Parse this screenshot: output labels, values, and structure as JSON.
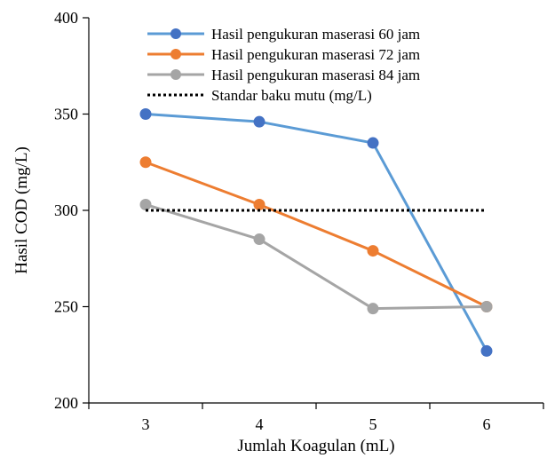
{
  "chart_data": {
    "type": "line",
    "title": "",
    "xlabel": "Jumlah Koagulan (mL)",
    "ylabel": "Hasil COD (mg/L)",
    "categories": [
      "3",
      "4",
      "5",
      "6"
    ],
    "ylim": [
      200,
      400
    ],
    "yticks": [
      200,
      250,
      300,
      350,
      400
    ],
    "grid": false,
    "legend_position": "top",
    "series": [
      {
        "name": "Hasil pengukuran maserasi 60 jam",
        "values": [
          350,
          346,
          335,
          227
        ],
        "color": "#5b9bd5",
        "marker_color": "#4472c4",
        "style": "solid-marker"
      },
      {
        "name": "Hasil pengukuran maserasi 72 jam",
        "values": [
          325,
          303,
          279,
          250
        ],
        "color": "#ed7d31",
        "marker_color": "#ed7d31",
        "style": "solid-marker"
      },
      {
        "name": "Hasil pengukuran maserasi 84 jam",
        "values": [
          303,
          285,
          249,
          250
        ],
        "color": "#a5a5a5",
        "marker_color": "#a5a5a5",
        "style": "solid-marker"
      },
      {
        "name": "Standar baku mutu (mg/L)",
        "values": [
          300,
          300,
          300,
          300
        ],
        "color": "#000000",
        "style": "dotted"
      }
    ]
  }
}
